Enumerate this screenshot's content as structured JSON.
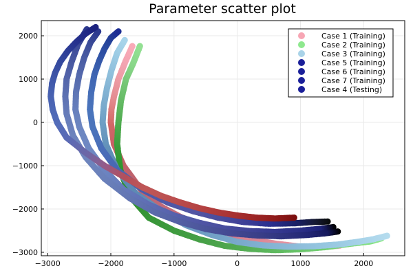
{
  "chart_data": {
    "type": "scatter",
    "title": "Parameter scatter plot",
    "xlabel": "",
    "ylabel": "",
    "xlim": [
      -3100,
      2650
    ],
    "ylim": [
      -3080,
      2350
    ],
    "xticks": [
      -3000,
      -2000,
      -1000,
      0,
      1000,
      2000
    ],
    "yticks": [
      -3000,
      -2000,
      -1000,
      0,
      1000,
      2000
    ],
    "xtick_labels": [
      "−3000",
      "−2000",
      "−1000",
      "0",
      "1000",
      "2000"
    ],
    "ytick_labels": [
      "−3000",
      "−2000",
      "−1000",
      "0",
      "1000",
      "2000"
    ],
    "grid": true,
    "legend_position": "top-right",
    "series": [
      {
        "name": "Case 1 (Training)",
        "legend_color": "#f7a6b4",
        "x": [
          1620,
          1500,
          1300,
          1000,
          600,
          200,
          -200,
          -600,
          -900,
          -1200,
          -1500,
          -1800,
          -1950,
          -2000,
          -1990,
          -1950,
          -1880,
          -1770,
          -1660
        ],
        "y": [
          -2850,
          -2860,
          -2880,
          -2870,
          -2800,
          -2700,
          -2560,
          -2360,
          -2180,
          -1950,
          -1600,
          -1000,
          -500,
          0,
          300,
          600,
          1000,
          1400,
          1760
        ],
        "colors": [
          "#fcb6c1",
          "#f9a9b6",
          "#f2a0ad",
          "#ea98a6",
          "#e28f9d",
          "#d98594",
          "#d17b8b",
          "#c97283",
          "#c56e7e",
          "#c06a79",
          "#bd6570",
          "#c0606a",
          "#c85f66",
          "#d26766",
          "#db7a7b",
          "#e38c90",
          "#ec99a2",
          "#f3a4b1",
          "#f9aab8"
        ]
      },
      {
        "name": "Case 2 (Training)",
        "legend_color": "#8ee88e",
        "x": [
          2280,
          2100,
          1800,
          1400,
          1000,
          600,
          200,
          -200,
          -600,
          -1000,
          -1400,
          -1700,
          -1850,
          -1900,
          -1880,
          -1840,
          -1760,
          -1650,
          -1540
        ],
        "y": [
          -2680,
          -2750,
          -2800,
          -2880,
          -2930,
          -2950,
          -2920,
          -2850,
          -2700,
          -2500,
          -2200,
          -1700,
          -1100,
          -500,
          0,
          500,
          1000,
          1350,
          1760
        ],
        "colors": [
          "#8ee88e",
          "#86e186",
          "#7dd87d",
          "#74cf74",
          "#6ac56a",
          "#60ba60",
          "#57b057",
          "#4ea64e",
          "#46a046",
          "#3f9b3f",
          "#389638",
          "#2f9130",
          "#2d942d",
          "#3b9e3b",
          "#4fab4f",
          "#63b963",
          "#78c878",
          "#88d688",
          "#93e093"
        ]
      },
      {
        "name": "Case 3 (Training)",
        "legend_color": "#a9d3e8",
        "x": [
          2370,
          2150,
          1900,
          1600,
          1200,
          800,
          400,
          0,
          -400,
          -800,
          -1200,
          -1600,
          -1900,
          -2080,
          -2130,
          -2110,
          -2060,
          -1990,
          -1900,
          -1780
        ],
        "y": [
          -2620,
          -2700,
          -2760,
          -2820,
          -2860,
          -2870,
          -2840,
          -2760,
          -2600,
          -2380,
          -2050,
          -1650,
          -1100,
          -500,
          0,
          400,
          800,
          1200,
          1600,
          1900
        ],
        "colors": [
          "#b6dcee",
          "#afd8ec",
          "#a6d2e8",
          "#9ccbe3",
          "#93c3de",
          "#8bbad8",
          "#82b2d2",
          "#7aa9cc",
          "#72a1c6",
          "#6a99c0",
          "#6391ba",
          "#5d8ab4",
          "#5c87b1",
          "#6392ba",
          "#6e9ec4",
          "#79a9cc",
          "#84b4d4",
          "#90c0dc",
          "#9bcbe4",
          "#a7d4ea"
        ]
      },
      {
        "name": "Case 5 (Training)",
        "legend_color": "#1a1f99",
        "x": [
          1430,
          1200,
          900,
          500,
          100,
          -300,
          -700,
          -1100,
          -1500,
          -1900,
          -2150,
          -2290,
          -2330,
          -2310,
          -2260,
          -2190,
          -2100,
          -2000,
          -1880
        ],
        "y": [
          -2290,
          -2300,
          -2330,
          -2340,
          -2300,
          -2200,
          -2050,
          -1850,
          -1550,
          -1100,
          -600,
          -100,
          300,
          700,
          1100,
          1400,
          1700,
          1950,
          2100
        ],
        "colors": [
          "#0a0c0c",
          "#151933",
          "#1a2066",
          "#2a2f8f",
          "#3c3f97",
          "#4a4c9c",
          "#5254a3",
          "#4f57a6",
          "#4a5cab",
          "#4866b2",
          "#4a6eb8",
          "#4b74bb",
          "#4a75bc",
          "#476fb8",
          "#4066b3",
          "#375bab",
          "#2d4ea2",
          "#233f98",
          "#1c2c93"
        ]
      },
      {
        "name": "Case 6 (Training)",
        "legend_color": "#1a1f99",
        "x": [
          1520,
          1300,
          1000,
          600,
          200,
          -200,
          -600,
          -1000,
          -1400,
          -1800,
          -2100,
          -2350,
          -2500,
          -2560,
          -2550,
          -2500,
          -2420,
          -2320,
          -2200
        ],
        "y": [
          -2420,
          -2460,
          -2500,
          -2530,
          -2510,
          -2450,
          -2320,
          -2150,
          -1900,
          -1550,
          -1100,
          -600,
          -100,
          300,
          700,
          1100,
          1500,
          1850,
          2100
        ],
        "colors": [
          "#000000",
          "#1c2176",
          "#2a2e85",
          "#34388e",
          "#3f4396",
          "#474c9d",
          "#4f55a4",
          "#5660ab",
          "#5e6cb3",
          "#6579ba",
          "#6c84c0",
          "#6e88c2",
          "#6d87c1",
          "#6881bd",
          "#6077b6",
          "#556aad",
          "#4a5ca3",
          "#3d4d99",
          "#2d3a8f"
        ]
      },
      {
        "name": "Case 7 (Training)",
        "legend_color": "#1a1f99",
        "x": [
          1590,
          1400,
          1100,
          700,
          300,
          -100,
          -500,
          -900,
          -1300,
          -1700,
          -2100,
          -2400,
          -2600,
          -2700,
          -2720,
          -2700,
          -2620,
          -2520,
          -2380
        ],
        "y": [
          -2520,
          -2560,
          -2600,
          -2630,
          -2610,
          -2560,
          -2460,
          -2300,
          -2080,
          -1750,
          -1300,
          -800,
          -300,
          200,
          600,
          1000,
          1400,
          1800,
          2150
        ],
        "colors": [
          "#000000",
          "#15195c",
          "#222674",
          "#2f347f",
          "#3a3f88",
          "#434891",
          "#4a5399",
          "#525ea2",
          "#5a69aa",
          "#6275b2",
          "#6a80ba",
          "#6e85bd",
          "#6c83bd",
          "#677dba",
          "#5f73b3",
          "#5567ab",
          "#4a5aa2",
          "#3d4b98",
          "#2d398d"
        ]
      },
      {
        "name": "Case 4 (Testing)",
        "legend_color": "#1a1f99",
        "x": [
          900,
          600,
          300,
          0,
          -300,
          -600,
          -900,
          -1200,
          -1500,
          -1800,
          -2100,
          -2400,
          -2700,
          -2850,
          -2920,
          -2950,
          -2930,
          -2880,
          -2800,
          -2680,
          -2550,
          -2400,
          -2240
        ],
        "y": [
          -2200,
          -2220,
          -2200,
          -2150,
          -2080,
          -1980,
          -1850,
          -1700,
          -1500,
          -1250,
          -1000,
          -700,
          -350,
          0,
          300,
          600,
          900,
          1150,
          1400,
          1650,
          1850,
          2050,
          2200
        ],
        "colors": [
          "#7a0e0e",
          "#8d1a1a",
          "#9a2424",
          "#a52e2e",
          "#ad3838",
          "#b44242",
          "#b84a4a",
          "#bc5252",
          "#bf5757",
          "#b44f5a",
          "#985a86",
          "#6c67a6",
          "#5a6ab5",
          "#536cb9",
          "#4e69b6",
          "#4963b2",
          "#435cad",
          "#3c53a6",
          "#354a9f",
          "#2e3f97",
          "#27338f",
          "#212a87",
          "#1c227f"
        ]
      }
    ]
  }
}
